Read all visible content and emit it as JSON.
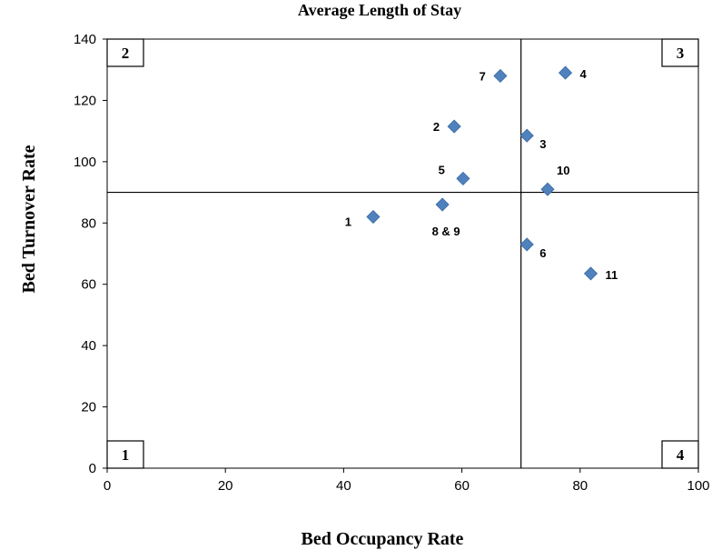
{
  "chart_data": {
    "type": "scatter",
    "title": "Average Length of Stay",
    "xlabel": "Bed Occupancy Rate",
    "ylabel": "Bed Turnover Rate",
    "xlim": [
      0,
      100
    ],
    "ylim": [
      0,
      140
    ],
    "x_ticks": [
      0,
      20,
      40,
      60,
      80,
      100
    ],
    "y_ticks": [
      0,
      20,
      40,
      60,
      80,
      100,
      120,
      140
    ],
    "grid": false,
    "legend": "none",
    "marker_color": "#4f81bd",
    "reference_lines": {
      "x": 70,
      "y": 90
    },
    "quadrant_labels": [
      {
        "label": "1",
        "position": "bottom-left"
      },
      {
        "label": "2",
        "position": "top-left"
      },
      {
        "label": "3",
        "position": "top-right"
      },
      {
        "label": "4",
        "position": "bottom-right"
      }
    ],
    "points": [
      {
        "label": "1",
        "x": 45,
        "y": 82,
        "label_side": "left-below"
      },
      {
        "label": "2",
        "x": 58.7,
        "y": 111.5,
        "label_side": "left"
      },
      {
        "label": "3",
        "x": 71,
        "y": 108.5,
        "label_side": "right-below"
      },
      {
        "label": "4",
        "x": 77.5,
        "y": 129,
        "label_side": "right"
      },
      {
        "label": "5",
        "x": 60.2,
        "y": 94.5,
        "label_side": "left-above"
      },
      {
        "label": "6",
        "x": 71,
        "y": 73,
        "label_side": "right-below"
      },
      {
        "label": "7",
        "x": 66.5,
        "y": 128,
        "label_side": "left"
      },
      {
        "label": "8 & 9",
        "x": 56.7,
        "y": 86,
        "label_side": "below"
      },
      {
        "label": "10",
        "x": 74.5,
        "y": 91,
        "label_side": "right-above"
      },
      {
        "label": "11",
        "x": 81.8,
        "y": 63.5,
        "label_side": "right"
      }
    ]
  }
}
